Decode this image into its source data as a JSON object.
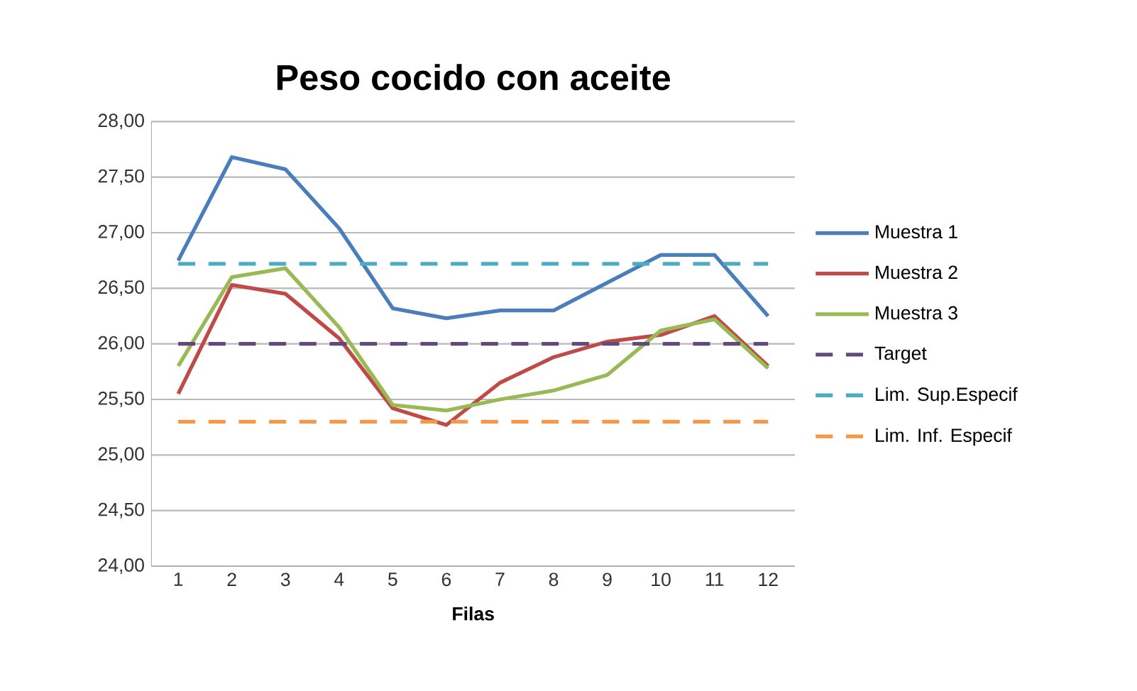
{
  "chart_data": {
    "type": "line",
    "title": "Peso cocido con aceite",
    "xlabel": "Filas",
    "categories": [
      "1",
      "2",
      "3",
      "4",
      "5",
      "6",
      "7",
      "8",
      "9",
      "10",
      "11",
      "12"
    ],
    "series": [
      {
        "name": "Muestra 1",
        "color": "#4a7ebb",
        "values": [
          26.75,
          27.68,
          27.57,
          27.04,
          26.32,
          26.23,
          26.3,
          26.3,
          26.55,
          26.8,
          26.8,
          26.25
        ]
      },
      {
        "name": "Muestra 2",
        "color": "#be4b48",
        "values": [
          25.55,
          26.53,
          26.45,
          26.05,
          25.42,
          25.27,
          25.65,
          25.88,
          26.02,
          26.08,
          26.25,
          25.8
        ]
      },
      {
        "name": "Muestra 3",
        "color": "#98b954",
        "values": [
          25.8,
          26.6,
          26.68,
          26.15,
          25.45,
          25.4,
          25.5,
          25.58,
          25.72,
          26.12,
          26.22,
          25.78
        ]
      },
      {
        "name": "Target",
        "color": "#604a7b",
        "line_style": "dashed",
        "values": [
          26,
          26,
          26,
          26,
          26,
          26,
          26,
          26,
          26,
          26,
          26,
          26
        ]
      },
      {
        "name": "Lim. Sup.Especif",
        "color": "#4bacc6",
        "line_style": "dashed",
        "values": [
          26.72,
          26.72,
          26.72,
          26.72,
          26.72,
          26.72,
          26.72,
          26.72,
          26.72,
          26.72,
          26.72,
          26.72
        ]
      },
      {
        "name": "Lim. Inf. Especif",
        "color": "#f79646",
        "line_style": "dashed",
        "values": [
          25.3,
          25.3,
          25.3,
          25.3,
          25.3,
          25.3,
          25.3,
          25.3,
          25.3,
          25.3,
          25.3,
          25.3
        ]
      }
    ],
    "ylim": [
      24,
      28
    ],
    "yticks": [
      {
        "value": 24,
        "label": "24,00"
      },
      {
        "value": 24.5,
        "label": "24,50"
      },
      {
        "value": 25,
        "label": "25,00"
      },
      {
        "value": 25.5,
        "label": "25,50"
      },
      {
        "value": 26,
        "label": "26,00"
      },
      {
        "value": 26.5,
        "label": "26,50"
      },
      {
        "value": 27,
        "label": "27,00"
      },
      {
        "value": 27.5,
        "label": "27,50"
      },
      {
        "value": 28,
        "label": "28,00"
      }
    ],
    "grid": "y",
    "legend": "right",
    "marker": "none",
    "line_style": "solid"
  }
}
